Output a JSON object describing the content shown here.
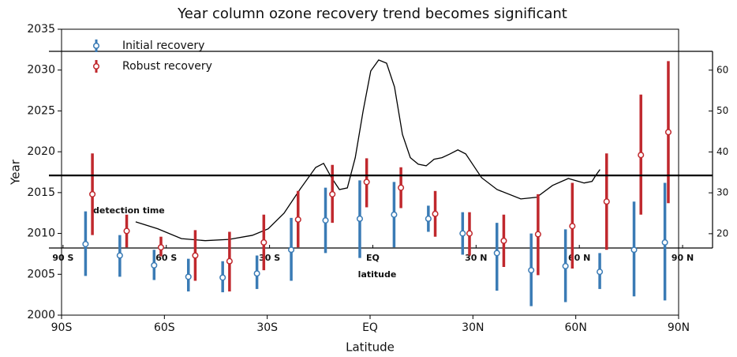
{
  "chart_data": [
    {
      "type": "errorbar",
      "title": "Year column ozone recovery trend becomes significant",
      "xlabel": "Latitude",
      "ylabel": "Year",
      "xlim": [
        -90,
        90
      ],
      "xticks": [
        {
          "value": -90,
          "label": "90S"
        },
        {
          "value": -60,
          "label": "60S"
        },
        {
          "value": -30,
          "label": "30S"
        },
        {
          "value": 0,
          "label": "EQ"
        },
        {
          "value": 30,
          "label": "30N"
        },
        {
          "value": 60,
          "label": "60N"
        },
        {
          "value": 90,
          "label": "90N"
        }
      ],
      "ylim": [
        2000,
        2035
      ],
      "yticks": [
        2000,
        2005,
        2010,
        2015,
        2020,
        2025,
        2030,
        2035
      ],
      "reference_line": 2017.1,
      "legend": "upper left",
      "series": [
        {
          "name": "Initial recovery",
          "color": "#3a7bb5",
          "x": [
            -83,
            -73,
            -63,
            -53,
            -43,
            -33,
            -23,
            -13,
            -3,
            7,
            17,
            27,
            37,
            47,
            57,
            67,
            77,
            86
          ],
          "values": [
            2008.7,
            2007.3,
            2006.1,
            2004.7,
            2004.6,
            2005.1,
            2008,
            2011.6,
            2011.8,
            2012.3,
            2011.8,
            2010,
            2007.6,
            2005.5,
            2006,
            2005.3,
            2008,
            2008.9
          ],
          "upper": [
            2012.7,
            2009.8,
            2008,
            2006.9,
            2006.6,
            2007.3,
            2011.9,
            2015.6,
            2016.5,
            2016.3,
            2013.4,
            2012.6,
            2011.3,
            2010,
            2010.5,
            2007.6,
            2013.9,
            2016.2
          ],
          "lower": [
            2004.8,
            2004.7,
            2004.3,
            2002.9,
            2002.8,
            2003.2,
            2004.2,
            2007.6,
            2007,
            2008.3,
            2010.2,
            2007.4,
            2003,
            2001.1,
            2001.6,
            2003.2,
            2002.3,
            2001.8
          ]
        },
        {
          "name": "Robust recovery",
          "color": "#c0282d",
          "x": [
            -81,
            -71,
            -61,
            -51,
            -41,
            -31,
            -21,
            -11,
            -1,
            9,
            19,
            29,
            39,
            49,
            59,
            69,
            79,
            87
          ],
          "values": [
            2014.8,
            2010.3,
            2008.3,
            2007.3,
            2006.6,
            2008.9,
            2011.7,
            2014.8,
            2016.3,
            2015.6,
            2012.4,
            2010,
            2009.1,
            2009.9,
            2010.9,
            2013.9,
            2019.6,
            2022.4
          ],
          "upper": [
            2019.8,
            2012.3,
            2009.6,
            2010.4,
            2010.2,
            2012.3,
            2015.2,
            2018.4,
            2019.2,
            2018.1,
            2015.2,
            2012.6,
            2012.3,
            2014.8,
            2016.2,
            2019.8,
            2027,
            2031.1
          ],
          "lower": [
            2009.8,
            2008.3,
            2007.2,
            2004.2,
            2002.9,
            2005.5,
            2008.3,
            2011.3,
            2013.2,
            2013.1,
            2009.6,
            2007.3,
            2005.9,
            2004.9,
            2005.7,
            2008,
            2012.3,
            2013.7
          ]
        }
      ]
    },
    {
      "type": "line",
      "xlabel": "latitude",
      "annotation": "detection time",
      "xlim": [
        -94.1,
        98.7
      ],
      "xticks": [
        {
          "value": -90,
          "label": "90 S"
        },
        {
          "value": -60,
          "label": "60 S"
        },
        {
          "value": -30,
          "label": "30 S"
        },
        {
          "value": 0,
          "label": "EQ"
        },
        {
          "value": 30,
          "label": "30 N"
        },
        {
          "value": 60,
          "label": "60 N"
        },
        {
          "value": 90,
          "label": "90 N"
        }
      ],
      "ylim": [
        16.5,
        64.6
      ],
      "yticks": [
        20,
        30,
        40,
        50,
        60
      ],
      "yaxis_side": "right",
      "color": "#000000",
      "x": [
        -68.9,
        -62.5,
        -55.6,
        -48.7,
        -41.8,
        -35,
        -30.4,
        -25.8,
        -21.2,
        -16.6,
        -14.3,
        -12,
        -9.7,
        -7.4,
        -5.1,
        -2.8,
        -0.6,
        1.7,
        4,
        6.3,
        8.6,
        10.9,
        13.2,
        15.5,
        17.8,
        20.1,
        22.4,
        24.7,
        27,
        29.3,
        31.6,
        36.1,
        43,
        47.6,
        52.2,
        56.8,
        61.4,
        63.7,
        64.8,
        66
      ],
      "values": [
        22.9,
        21.2,
        18.8,
        18.3,
        18.6,
        19.6,
        21.2,
        25,
        30.8,
        36.2,
        37.2,
        33.7,
        30.8,
        31.2,
        38.6,
        50.1,
        59.8,
        62.5,
        61.7,
        55.9,
        44.3,
        38.6,
        37,
        36.6,
        38.2,
        38.6,
        39.5,
        40.5,
        39.5,
        36.6,
        33.7,
        30.8,
        28.5,
        28.9,
        31.8,
        33.5,
        32.4,
        32.8,
        34.3,
        35.7
      ]
    }
  ]
}
